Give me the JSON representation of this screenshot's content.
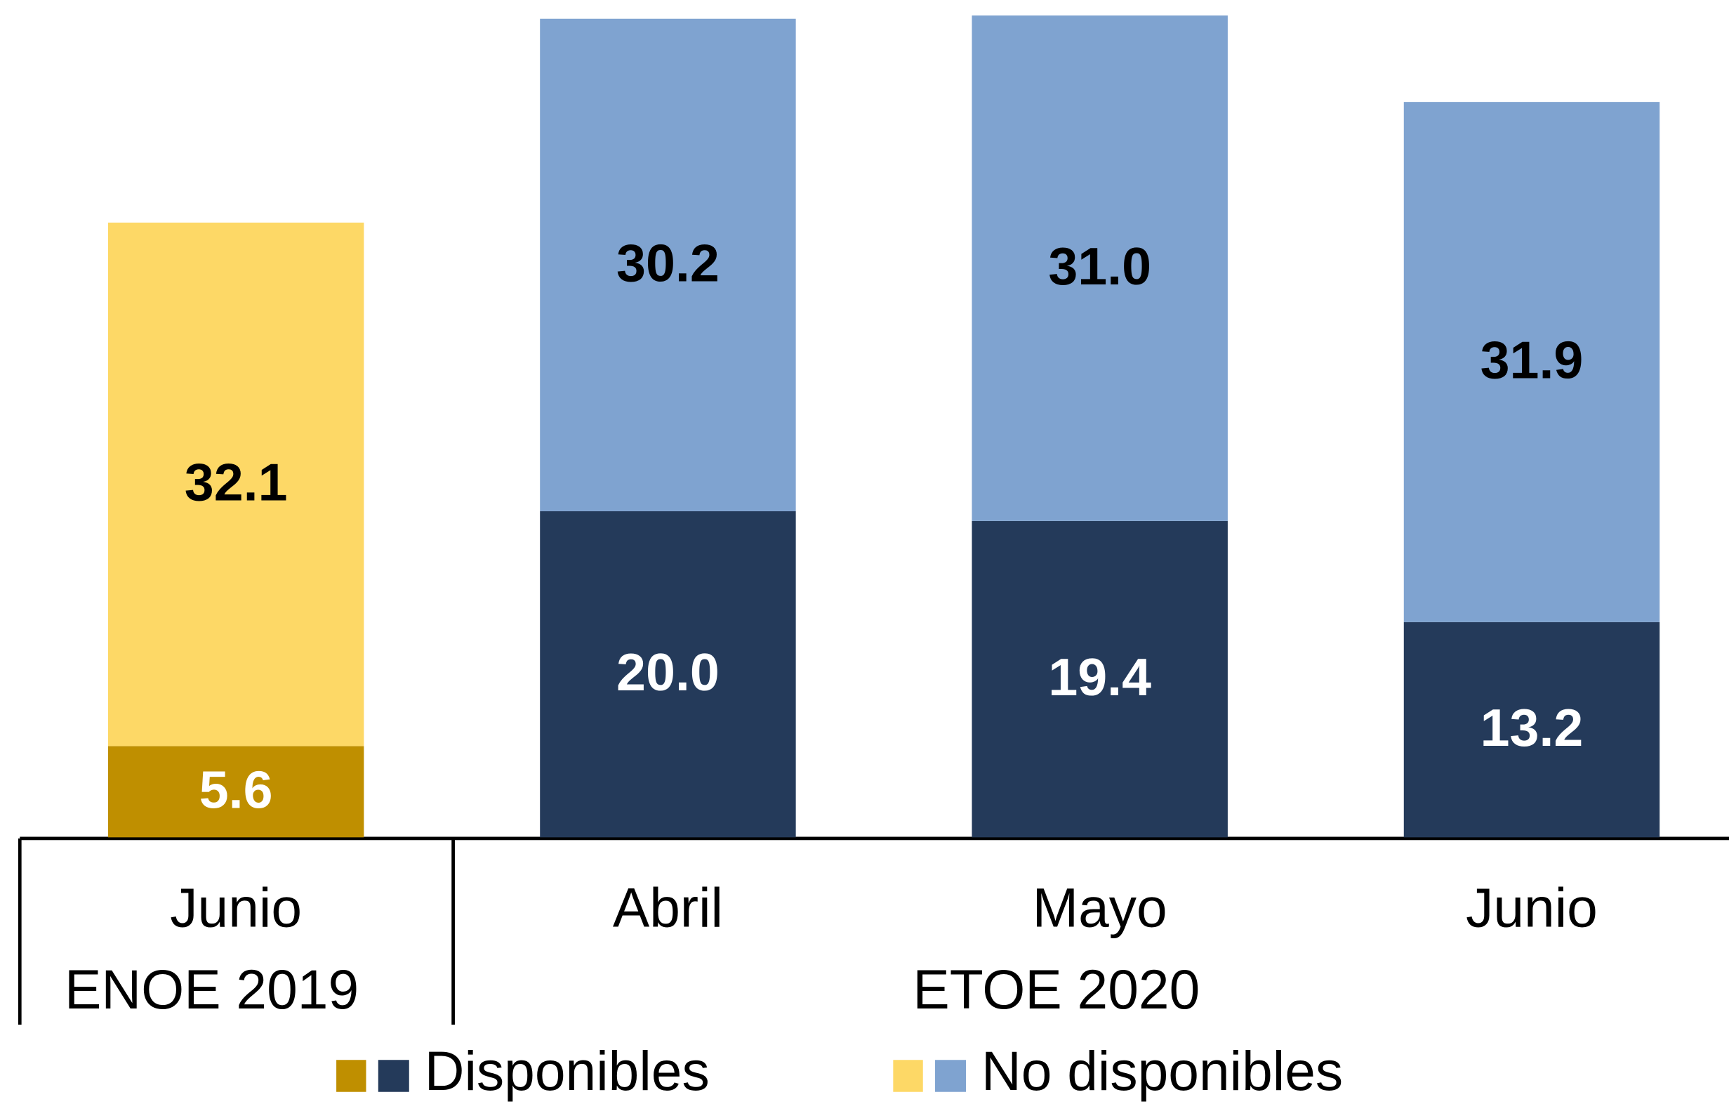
{
  "chart_data": {
    "type": "stacked_bar",
    "categories": [
      "Junio",
      "Abril",
      "Mayo",
      "Junio"
    ],
    "groups": [
      {
        "label": "ENOE 2019",
        "size": 1
      },
      {
        "label": "ETOE 2020",
        "size": 3
      }
    ],
    "series": [
      {
        "name": "Disponibles",
        "colors": [
          "#bf8f00",
          "#243a5a",
          "#243a5a",
          "#243a5a"
        ],
        "values": [
          5.6,
          20.0,
          19.4,
          13.2
        ],
        "value_labels": [
          "5.6",
          "20.0",
          "19.4",
          "13.2"
        ],
        "label_color": "#ffffff"
      },
      {
        "name": "No disponibles",
        "colors": [
          "#fdd866",
          "#7fa3d0",
          "#7fa3d0",
          "#7fa3d0"
        ],
        "values": [
          32.1,
          30.2,
          31.0,
          31.9
        ],
        "value_labels": [
          "32.1",
          "30.2",
          "31.0",
          "31.9"
        ],
        "label_color": "#000000"
      }
    ],
    "legend": "bottom"
  }
}
